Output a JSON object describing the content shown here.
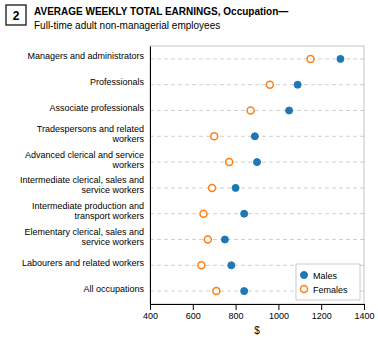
{
  "chart_data": {
    "type": "dot",
    "title": "AVERAGE WEEKLY TOTAL EARNINGS, Occupation—",
    "subtitle": "Full-time adult non-managerial employees",
    "annotations": [
      "2"
    ],
    "categories": [
      "Managers and administrators",
      "Professionals",
      "Associate professionals",
      "Tradespersons and related workers",
      "Advanced clerical and service workers",
      "Intermediate clerical, sales and service workers",
      "Intermediate production and transport workers",
      "Elementary clerical, sales and service workers",
      "Labourers and related workers",
      "All occupations"
    ],
    "series": [
      {
        "name": "Males",
        "marker": "circle",
        "values": [
          1290,
          1090,
          1050,
          890,
          900,
          800,
          840,
          750,
          780,
          840
        ]
      },
      {
        "name": "Females",
        "marker": "circle-open",
        "values": [
          1150,
          960,
          870,
          700,
          770,
          690,
          650,
          670,
          640,
          710
        ]
      }
    ],
    "x_label": "$",
    "xlim": [
      400,
      1400
    ],
    "xticks": [
      400,
      600,
      800,
      1000,
      1200,
      1400
    ],
    "grid": true,
    "legend": "lower right"
  }
}
